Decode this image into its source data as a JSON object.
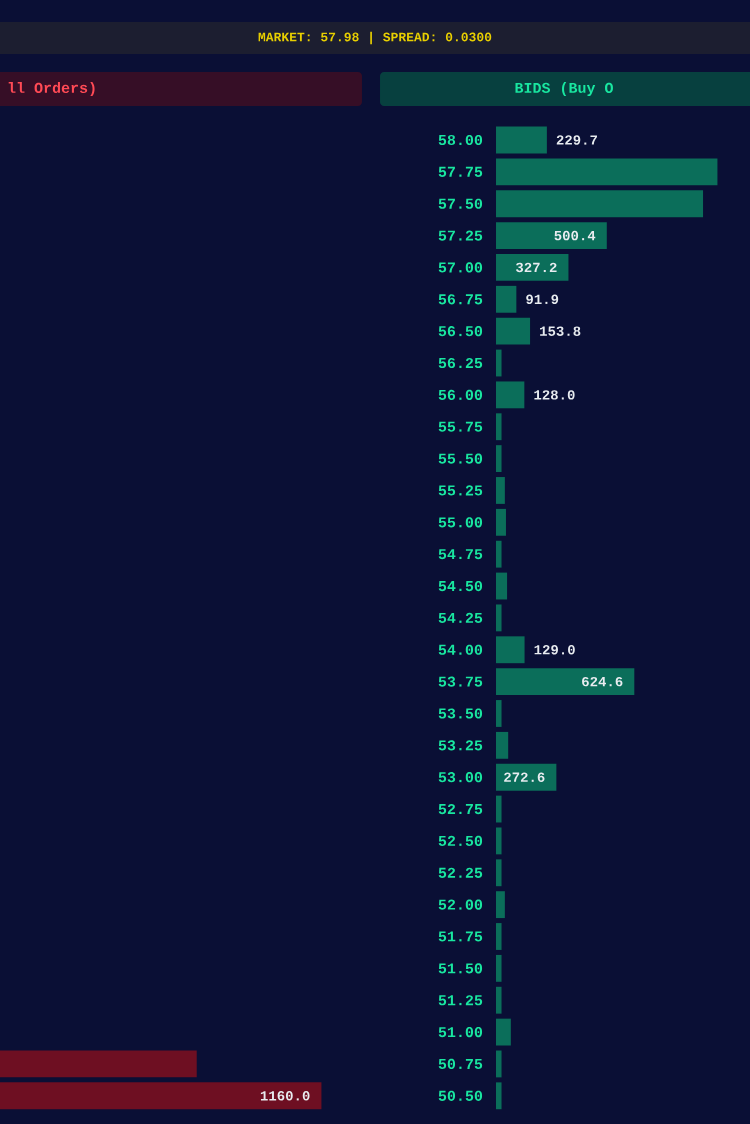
{
  "chart_data": [
    {
      "type": "bar",
      "orientation": "horizontal",
      "title": "ll Orders)",
      "annotations": [
        "MARKET: 57.98 | SPREAD: 0.0300"
      ],
      "tick_labels": false,
      "color": "#6e0f22",
      "categories": [
        null,
        null
      ],
      "values": [
        710,
        1160.0
      ],
      "value_labels": [
        null,
        "1160.0"
      ]
    },
    {
      "type": "bar",
      "orientation": "horizontal",
      "title": "BIDS (Buy O",
      "tick_labels": "y",
      "color": "#0b6e5a",
      "categories": [
        "58.00",
        "57.75",
        "57.50",
        "57.25",
        "57.00",
        "56.75",
        "56.50",
        "56.25",
        "56.00",
        "55.75",
        "55.50",
        "55.25",
        "55.00",
        "54.75",
        "54.50",
        "54.25",
        "54.00",
        "53.75",
        "53.50",
        "53.25",
        "53.00",
        "52.75",
        "52.50",
        "52.25",
        "52.00",
        "51.75",
        "51.50",
        "51.25",
        "51.00",
        "50.75",
        "50.50"
      ],
      "values": [
        229.7,
        1000,
        935,
        500.4,
        327.2,
        91.9,
        153.8,
        25,
        128.0,
        25,
        25,
        40,
        45,
        25,
        50,
        25,
        129.0,
        624.6,
        25,
        55,
        272.6,
        25,
        25,
        25,
        40,
        25,
        25,
        25,
        67,
        25,
        25
      ],
      "value_labels": [
        "229.7",
        null,
        null,
        "500.4",
        "327.2",
        "91.9",
        "153.8",
        null,
        "128.0",
        null,
        null,
        null,
        null,
        null,
        null,
        null,
        "129.0",
        "624.6",
        null,
        null,
        "272.6",
        null,
        null,
        null,
        null,
        null,
        null,
        null,
        null,
        null,
        null
      ]
    }
  ]
}
